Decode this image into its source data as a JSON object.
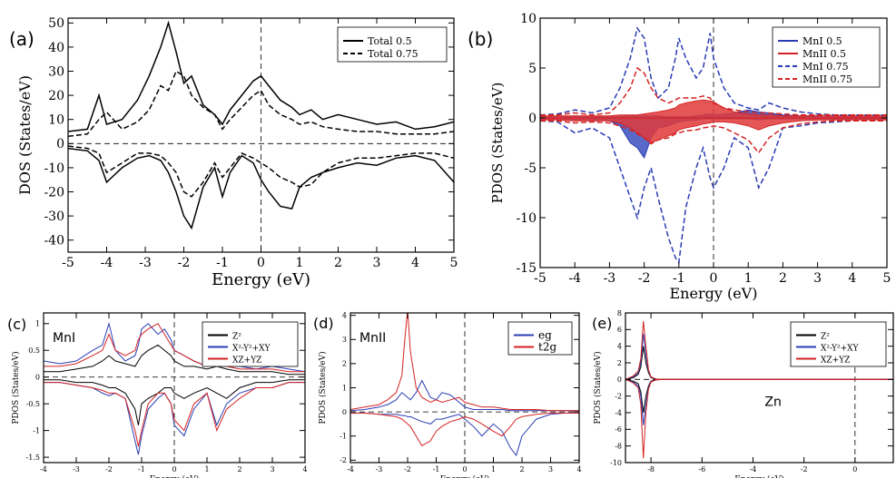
{
  "colors": {
    "black": "#000000",
    "blue": "#2a3db3",
    "red": "#d42222",
    "blue_fill": "#3a4fc0",
    "red_fill": "#e03a3a"
  },
  "chart_data": [
    {
      "id": "a",
      "type": "line",
      "panel_label": "(a)",
      "xlabel": "Energy (eV)",
      "ylabel": "DOS (States/eV)",
      "xlim": [
        -5,
        5
      ],
      "ylim": [
        -45,
        52
      ],
      "xticks": [
        "-5",
        "-4",
        "-3",
        "-2",
        "-1",
        "0",
        "1",
        "2",
        "3",
        "4",
        "5"
      ],
      "yticks": [
        "-40",
        "-30",
        "-20",
        "-10",
        "0",
        "10",
        "20",
        "30",
        "40",
        "50"
      ],
      "legend": "top-right",
      "x": [
        -5,
        -4.5,
        -4.2,
        -4,
        -3.6,
        -3.2,
        -2.9,
        -2.6,
        -2.4,
        -2.2,
        -2,
        -1.8,
        -1.5,
        -1.2,
        -1,
        -0.8,
        -0.5,
        -0.2,
        0,
        0.2,
        0.5,
        0.8,
        1,
        1.3,
        1.6,
        2,
        2.5,
        3,
        3.5,
        4,
        4.5,
        5
      ],
      "series": [
        {
          "name": "Total 0.5",
          "style": "solid",
          "up": [
            5,
            6,
            20,
            8,
            10,
            18,
            28,
            40,
            50,
            38,
            25,
            28,
            16,
            12,
            8,
            14,
            20,
            26,
            28,
            24,
            18,
            15,
            12,
            14,
            10,
            12,
            10,
            8,
            9,
            6,
            7,
            9
          ],
          "down": [
            -2,
            -3,
            -7,
            -16,
            -10,
            -6,
            -5,
            -7,
            -12,
            -20,
            -30,
            -35,
            -18,
            -10,
            -22,
            -12,
            -5,
            -8,
            -15,
            -20,
            -26,
            -27,
            -18,
            -14,
            -12,
            -10,
            -8,
            -9,
            -6,
            -5,
            -7,
            -16
          ]
        },
        {
          "name": "Total 0.75",
          "style": "dashed",
          "up": [
            3,
            4,
            10,
            13,
            6,
            9,
            14,
            24,
            22,
            30,
            28,
            20,
            15,
            12,
            6,
            10,
            15,
            20,
            22,
            16,
            12,
            10,
            8,
            9,
            7,
            6,
            5,
            5,
            4,
            4,
            4,
            5
          ],
          "down": [
            -1,
            -2,
            -4,
            -12,
            -8,
            -4,
            -4,
            -5,
            -8,
            -12,
            -20,
            -22,
            -16,
            -8,
            -14,
            -10,
            -4,
            -6,
            -8,
            -10,
            -14,
            -16,
            -18,
            -17,
            -12,
            -8,
            -6,
            -6,
            -5,
            -4,
            -4,
            -6
          ]
        }
      ]
    },
    {
      "id": "b",
      "type": "area",
      "panel_label": "(b)",
      "xlabel": "Energy (eV)",
      "ylabel": "PDOS (States/eV)",
      "xlim": [
        -5,
        5
      ],
      "ylim": [
        -15,
        10
      ],
      "xticks": [
        "-5",
        "-4",
        "-3",
        "-2",
        "-1",
        "0",
        "1",
        "2",
        "3",
        "4",
        "5"
      ],
      "yticks": [
        "-15",
        "-10",
        "-5",
        "0",
        "5",
        "10"
      ],
      "legend": "top-right",
      "x": [
        -5,
        -4.5,
        -4,
        -3.5,
        -3,
        -2.7,
        -2.4,
        -2.2,
        -2,
        -1.8,
        -1.6,
        -1.3,
        -1.1,
        -1,
        -0.8,
        -0.5,
        -0.3,
        -0.1,
        0,
        0.3,
        0.6,
        1,
        1.3,
        1.6,
        2,
        2.5,
        3,
        3.5,
        4,
        4.5,
        5
      ],
      "series": [
        {
          "name": "MnI 0.5",
          "color": "blue",
          "style": "fill",
          "up": [
            0.1,
            0.1,
            0.2,
            0.1,
            0.1,
            0.1,
            0.2,
            0.2,
            0.2,
            0.2,
            0.2,
            0.1,
            0.1,
            0.1,
            0.1,
            0.2,
            0.3,
            0.4,
            0.3,
            0.4,
            0.5,
            0.8,
            0.6,
            0.5,
            0.3,
            0.2,
            0.2,
            0.1,
            0.1,
            0.1,
            0.1
          ],
          "down": [
            -0.1,
            -0.1,
            -0.2,
            -0.2,
            -0.3,
            -0.8,
            -2.5,
            -3,
            -4,
            -2,
            -1,
            -0.8,
            -0.5,
            -0.4,
            -0.3,
            -0.2,
            -0.1,
            -0.1,
            -0.1,
            -0.1,
            -0.1,
            -0.1,
            -0.2,
            -0.1,
            -0.1,
            -0.1,
            -0.1,
            -0.1,
            -0.1,
            -0.1,
            -0.1
          ]
        },
        {
          "name": "MnII 0.5",
          "color": "red",
          "style": "fill",
          "up": [
            0.2,
            0.2,
            0.2,
            0.2,
            0.2,
            0.3,
            0.3,
            0.3,
            0.4,
            0.5,
            0.6,
            0.8,
            1,
            1.3,
            1.5,
            1.7,
            1.8,
            1.7,
            1.6,
            1,
            0.6,
            0.4,
            0.3,
            0.3,
            0.2,
            0.2,
            0.2,
            0.2,
            0.2,
            0.2,
            0.2
          ],
          "down": [
            -0.2,
            -0.2,
            -0.3,
            -0.3,
            -0.3,
            -0.5,
            -1,
            -1.5,
            -2,
            -2.5,
            -2.2,
            -1.8,
            -1.5,
            -1.2,
            -1,
            -0.8,
            -0.6,
            -0.5,
            -0.4,
            -0.4,
            -0.5,
            -0.8,
            -1.2,
            -0.8,
            -0.5,
            -0.3,
            -0.2,
            -0.2,
            -0.2,
            -0.2,
            -0.2
          ]
        },
        {
          "name": "MnI 0.75",
          "color": "blue",
          "style": "dashed",
          "up": [
            0.3,
            0.4,
            0.8,
            0.5,
            1,
            3,
            6,
            9,
            8,
            4,
            2,
            3,
            6,
            8,
            6,
            4,
            5,
            8.5,
            6,
            3,
            1.5,
            1,
            0.8,
            1.5,
            1,
            0.6,
            0.4,
            0.3,
            0.3,
            0.3,
            0.3
          ],
          "down": [
            -0.3,
            -0.4,
            -1.5,
            -1,
            -2,
            -5,
            -8,
            -10,
            -7,
            -5,
            -8,
            -12,
            -14,
            -14.5,
            -9,
            -5,
            -3,
            -6,
            -7,
            -5,
            -2,
            -3,
            -7,
            -5,
            -1,
            -0.8,
            -0.5,
            -0.4,
            -0.3,
            -0.3,
            -0.3
          ]
        },
        {
          "name": "MnII 0.75",
          "color": "red",
          "style": "dashed",
          "up": [
            0.3,
            0.3,
            0.5,
            0.3,
            0.5,
            1.5,
            3,
            5,
            4.5,
            3,
            2,
            1.5,
            1.8,
            2,
            2,
            2,
            2.2,
            2,
            1.5,
            1,
            0.8,
            0.6,
            0.5,
            0.5,
            0.4,
            0.3,
            0.3,
            0.3,
            0.3,
            0.3,
            0.3
          ],
          "down": [
            -0.3,
            -0.3,
            -0.5,
            -0.4,
            -0.5,
            -0.8,
            -1.2,
            -1.6,
            -2,
            -2.6,
            -2.2,
            -2,
            -1.6,
            -1.5,
            -1.3,
            -1.2,
            -1,
            -0.9,
            -0.8,
            -1,
            -1.5,
            -2.2,
            -3.5,
            -2,
            -1,
            -0.6,
            -0.4,
            -0.3,
            -0.3,
            -0.3,
            -0.3
          ]
        }
      ]
    },
    {
      "id": "c",
      "type": "line",
      "panel_label": "(c)",
      "inner_label": "MnI",
      "xlabel": "Energy (eV)",
      "ylabel": "PDOS (States/eV)",
      "xlim": [
        -4,
        4
      ],
      "ylim": [
        -1.6,
        1.2
      ],
      "xticks": [
        "-4",
        "-3",
        "-2",
        "-1",
        "0",
        "1",
        "2",
        "3",
        "4"
      ],
      "yticks": [
        "-1.5",
        "-1",
        "-0.5",
        "0",
        "0.5",
        "1"
      ],
      "legend": "top-right",
      "legend_entries": [
        "Z²",
        "X²-Y²+XY",
        "XZ+YZ"
      ],
      "x": [
        -4,
        -3.5,
        -3,
        -2.5,
        -2.2,
        -2,
        -1.8,
        -1.5,
        -1.2,
        -1.1,
        -1,
        -0.8,
        -0.5,
        -0.3,
        -0.1,
        0,
        0.3,
        0.6,
        1,
        1.3,
        1.6,
        2,
        2.5,
        3,
        3.5,
        4
      ],
      "series": [
        {
          "name": "Z²",
          "color": "black",
          "up": [
            0.1,
            0.1,
            0.15,
            0.2,
            0.3,
            0.4,
            0.3,
            0.25,
            0.2,
            0.3,
            0.4,
            0.5,
            0.6,
            0.5,
            0.4,
            0.3,
            0.2,
            0.2,
            0.15,
            0.2,
            0.15,
            0.1,
            0.1,
            0.1,
            0.05,
            0.05
          ],
          "down": [
            -0.05,
            -0.05,
            -0.1,
            -0.1,
            -0.15,
            -0.2,
            -0.2,
            -0.3,
            -0.6,
            -0.9,
            -0.5,
            -0.4,
            -0.3,
            -0.2,
            -0.2,
            -0.3,
            -0.4,
            -0.3,
            -0.2,
            -0.3,
            -0.4,
            -0.2,
            -0.1,
            -0.1,
            -0.05,
            -0.05
          ]
        },
        {
          "name": "X²-Y²+XY",
          "color": "blue",
          "up": [
            0.3,
            0.25,
            0.3,
            0.5,
            0.6,
            1,
            0.5,
            0.3,
            0.4,
            0.6,
            0.9,
            1,
            0.8,
            0.9,
            0.7,
            0.5,
            0.4,
            0.3,
            0.2,
            0.3,
            0.2,
            0.2,
            0.15,
            0.2,
            0.15,
            0.1
          ],
          "down": [
            -0.1,
            -0.1,
            -0.15,
            -0.2,
            -0.3,
            -0.35,
            -0.3,
            -0.4,
            -1.2,
            -1.45,
            -1.1,
            -0.6,
            -0.4,
            -0.3,
            -0.5,
            -0.9,
            -1.1,
            -0.6,
            -0.3,
            -0.9,
            -0.5,
            -0.3,
            -0.2,
            -0.2,
            -0.1,
            -0.1
          ]
        },
        {
          "name": "XZ+YZ",
          "color": "red",
          "up": [
            0.2,
            0.2,
            0.25,
            0.4,
            0.5,
            0.8,
            0.5,
            0.4,
            0.5,
            0.7,
            0.8,
            0.9,
            1,
            0.8,
            0.6,
            0.5,
            0.4,
            0.3,
            0.2,
            0.25,
            0.2,
            0.15,
            0.15,
            0.15,
            0.1,
            0.1
          ],
          "down": [
            -0.1,
            -0.1,
            -0.15,
            -0.2,
            -0.25,
            -0.3,
            -0.3,
            -0.4,
            -1,
            -1.3,
            -1,
            -0.5,
            -0.3,
            -0.3,
            -0.5,
            -0.8,
            -1,
            -0.5,
            -0.3,
            -1,
            -0.6,
            -0.4,
            -0.2,
            -0.2,
            -0.1,
            -0.1
          ]
        }
      ]
    },
    {
      "id": "d",
      "type": "line",
      "panel_label": "(d)",
      "inner_label": "MnII",
      "xlabel": "Energy (eV)",
      "ylabel": "PDOS (States/eV)",
      "xlim": [
        -4,
        4
      ],
      "ylim": [
        -2.1,
        4.1
      ],
      "xticks": [
        "-4",
        "-3",
        "-2",
        "-1",
        "0",
        "1",
        "2",
        "3",
        "4"
      ],
      "yticks": [
        "-2",
        "-1",
        "0",
        "1",
        "2",
        "3",
        "4"
      ],
      "legend": "top-right",
      "legend_entries": [
        "eg",
        "t2g"
      ],
      "x": [
        -4,
        -3.5,
        -3,
        -2.7,
        -2.4,
        -2.2,
        -2.1,
        -2,
        -1.9,
        -1.7,
        -1.5,
        -1.2,
        -1,
        -0.8,
        -0.5,
        -0.2,
        0,
        0.3,
        0.6,
        1,
        1.3,
        1.6,
        1.8,
        2,
        2.5,
        3,
        3.5,
        4
      ],
      "series": [
        {
          "name": "eg",
          "color": "blue",
          "up": [
            0.05,
            0.1,
            0.2,
            0.3,
            0.5,
            0.8,
            0.7,
            0.6,
            0.5,
            0.8,
            1.3,
            0.6,
            0.5,
            0.8,
            0.7,
            0.4,
            0.2,
            0.1,
            0.1,
            0.1,
            0.1,
            0.05,
            0.05,
            0.05,
            0.05,
            0.05,
            0.05,
            0.05
          ],
          "down": [
            -0.05,
            -0.05,
            -0.1,
            -0.1,
            -0.1,
            -0.15,
            -0.15,
            -0.2,
            -0.2,
            -0.3,
            -0.4,
            -0.5,
            -0.3,
            -0.3,
            -0.2,
            -0.1,
            -0.3,
            -0.6,
            -1,
            -0.5,
            -0.8,
            -1.5,
            -1.8,
            -1,
            -0.3,
            -0.1,
            -0.05,
            -0.05
          ]
        },
        {
          "name": "t2g",
          "color": "red",
          "up": [
            0.1,
            0.2,
            0.3,
            0.5,
            0.8,
            1.5,
            3,
            4.2,
            2.5,
            1,
            0.6,
            0.4,
            0.5,
            0.4,
            0.5,
            0.6,
            0.4,
            0.3,
            0.2,
            0.2,
            0.15,
            0.1,
            0.1,
            0.1,
            0.1,
            0.05,
            0.05,
            0.05
          ],
          "down": [
            -0.05,
            -0.05,
            -0.1,
            -0.15,
            -0.2,
            -0.3,
            -0.4,
            -0.5,
            -0.6,
            -1,
            -1.4,
            -1.2,
            -0.8,
            -0.6,
            -0.4,
            -0.3,
            -0.2,
            -0.3,
            -0.5,
            -0.8,
            -1,
            -0.6,
            -0.3,
            -0.2,
            -0.1,
            -0.05,
            -0.05,
            -0.05
          ]
        }
      ]
    },
    {
      "id": "e",
      "type": "line",
      "panel_label": "(e)",
      "inner_label": "Zn",
      "xlabel": "Energy (eV)",
      "ylabel": "PDOS (States/eV)",
      "xlim": [
        -9,
        1.5
      ],
      "ylim": [
        -10,
        8
      ],
      "xticks": [
        "-8",
        "-6",
        "-4",
        "-2",
        "0"
      ],
      "yticks": [
        "-10",
        "-8",
        "-6",
        "-4",
        "-2",
        "0",
        "2",
        "4",
        "6",
        "8"
      ],
      "legend": "top-right",
      "legend_entries": [
        "Z²",
        "X²-Y²+XY",
        "XZ+YZ"
      ],
      "x": [
        -9,
        -8.7,
        -8.5,
        -8.4,
        -8.3,
        -8.2,
        -8.1,
        -8,
        -7.8,
        -7.5,
        -7,
        -6,
        -4,
        -2,
        0,
        1.5
      ],
      "series": [
        {
          "name": "Z²",
          "color": "black",
          "up": [
            0,
            0.2,
            0.6,
            1.5,
            4,
            2,
            0.8,
            0.2,
            0.05,
            0,
            0,
            0,
            0,
            0,
            0,
            0
          ],
          "down": [
            0,
            -0.2,
            -0.5,
            -1.5,
            -4,
            -2,
            -0.8,
            -0.2,
            -0.05,
            0,
            0,
            0,
            0,
            0,
            0,
            0
          ]
        },
        {
          "name": "X²-Y²+XY",
          "color": "blue",
          "up": [
            0,
            0.3,
            0.8,
            2,
            5.5,
            3,
            1,
            0.3,
            0.05,
            0,
            0,
            0,
            0,
            0,
            0,
            0
          ],
          "down": [
            0,
            -0.3,
            -0.8,
            -2,
            -5.5,
            -3,
            -1,
            -0.3,
            -0.05,
            0,
            0,
            0,
            0,
            0,
            0,
            0
          ]
        },
        {
          "name": "XZ+YZ",
          "color": "red",
          "up": [
            0,
            0.4,
            1,
            2.5,
            7,
            4,
            1.2,
            0.3,
            0.05,
            0,
            0,
            0,
            0,
            0,
            0,
            0
          ],
          "down": [
            0,
            -0.4,
            -1,
            -3,
            -9.5,
            -4,
            -1.2,
            -0.3,
            -0.05,
            0,
            0,
            0,
            0,
            0,
            0,
            0
          ]
        }
      ]
    }
  ]
}
